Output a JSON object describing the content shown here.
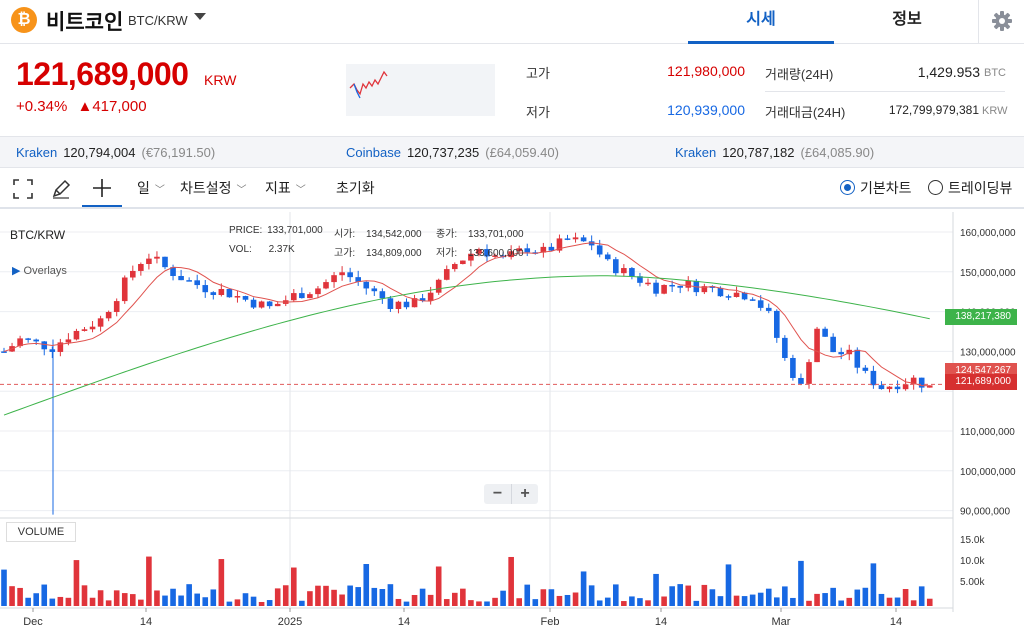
{
  "header": {
    "coin_symbol_glyph": "₿",
    "coin_name": "비트코인",
    "pair": "BTC/KRW",
    "tabs": [
      {
        "label": "시세",
        "active": true
      },
      {
        "label": "정보",
        "active": false
      }
    ],
    "settings_icon": "gear-icon"
  },
  "summary": {
    "price": "121,689,000",
    "price_unit": "KRW",
    "change_percent": "+0.34%",
    "change_amount": "▲417,000",
    "high_label": "고가",
    "high_value": "121,980,000",
    "low_label": "저가",
    "low_value": "120,939,000",
    "volume_label": "거래량(24H)",
    "volume_value": "1,429.953",
    "volume_unit": "BTC",
    "amount_label": "거래대금(24H)",
    "amount_value": "172,799,979,381",
    "amount_unit": "KRW"
  },
  "exchanges": [
    {
      "name": "Kraken",
      "price": "120,794,004",
      "fx": "(€76,191.50)"
    },
    {
      "name": "Coinbase",
      "price": "120,737,235",
      "fx": "(£64,059.40)"
    },
    {
      "name": "Kraken",
      "price": "120,787,182",
      "fx": "(£64,085.90)"
    }
  ],
  "toolbar": {
    "period": "일",
    "chart_settings": "차트설정",
    "indicators": "지표",
    "reset": "초기화",
    "basic_chart": "기본차트",
    "tradingview": "트레이딩뷰",
    "icons": [
      "fullscreen-icon",
      "pen-icon",
      "crosshair-icon"
    ]
  },
  "chart": {
    "pair_label": "BTC/KRW",
    "overlays_label": "Overlays",
    "ohlc": {
      "price_label": "PRICE:",
      "price": "133,701,000",
      "open_label": "시가:",
      "open": "134,542,000",
      "close_label": "종가:",
      "close": "133,701,000",
      "vol_label": "VOL:",
      "vol": "2.37K",
      "high_label": "고가:",
      "high": "134,809,000",
      "low_label": "저가:",
      "low": "133,600,000"
    },
    "volume_label": "VOLUME",
    "zoom_out": "−",
    "zoom_in": "+",
    "price_ticks": [
      "160,000,000",
      "150,000,000",
      "140,000,000",
      "130,000,000",
      "110,000,000",
      "100,000,000",
      "90,000,000"
    ],
    "volume_ticks": [
      "15.0k",
      "10.0k",
      "5.00k"
    ],
    "date_ticks": [
      "Dec",
      "14",
      "2025",
      "14",
      "Feb",
      "14",
      "Mar",
      "14"
    ],
    "tag_ma_long": "138,217,380",
    "tag_ma_short": "124,547,267",
    "tag_current": "121,689,000",
    "colors": {
      "up": "#e0343b",
      "down": "#1768e3",
      "ma_short": "#e0534f",
      "ma_long": "#3db34a",
      "current_line": "#e05b5b"
    }
  }
}
